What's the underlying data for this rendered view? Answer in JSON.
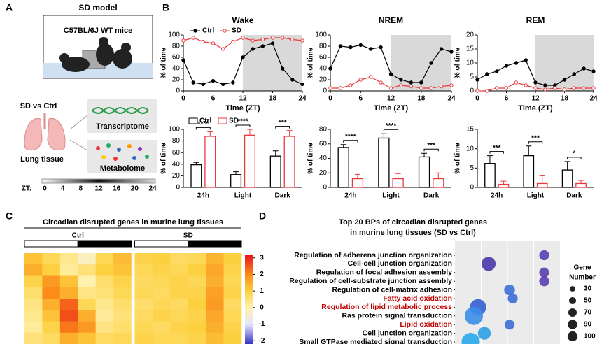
{
  "panel_labels": [
    "A",
    "B",
    "C",
    "D"
  ],
  "model": {
    "title": "SD model",
    "strain": "C57BL/6J WT mice",
    "compare": "SD vs Ctrl",
    "tissue": "Lung tissue",
    "omics": [
      "Transcriptome",
      "Metabolome"
    ],
    "zt_label": "ZT:",
    "zt_ticks": [
      0,
      4,
      8,
      12,
      16,
      20,
      24
    ]
  },
  "chart_data": [
    {
      "type": "line",
      "title": "Wake",
      "xlabel": "Time (ZT)",
      "ylabel": "% of time",
      "legend": true,
      "shade": [
        12,
        24
      ],
      "shade_color": "#d9d9d9",
      "x": [
        0,
        2,
        4,
        6,
        8,
        10,
        12,
        14,
        16,
        18,
        20,
        22,
        24
      ],
      "xlim": [
        0,
        24
      ],
      "xticks": [
        0,
        6,
        12,
        18,
        24
      ],
      "ylim": [
        0,
        100
      ],
      "yticks": [
        0,
        20,
        40,
        60,
        80,
        100
      ],
      "series": [
        {
          "name": "Ctrl",
          "color": "#000000",
          "filled": true,
          "values": [
            55,
            15,
            12,
            18,
            12,
            15,
            60,
            75,
            80,
            85,
            40,
            20,
            12
          ]
        },
        {
          "name": "SD",
          "color": "#e8383d",
          "filled": false,
          "values": [
            90,
            95,
            88,
            85,
            75,
            88,
            95,
            90,
            92,
            95,
            95,
            92,
            90
          ]
        }
      ]
    },
    {
      "type": "line",
      "title": "NREM",
      "xlabel": "Time (ZT)",
      "ylabel": "% of time",
      "shade": [
        12,
        24
      ],
      "shade_color": "#d9d9d9",
      "x": [
        0,
        2,
        4,
        6,
        8,
        10,
        12,
        14,
        16,
        18,
        20,
        22,
        24
      ],
      "xlim": [
        0,
        24
      ],
      "xticks": [
        0,
        6,
        12,
        18,
        24
      ],
      "ylim": [
        0,
        100
      ],
      "yticks": [
        0,
        20,
        40,
        60,
        80,
        100
      ],
      "series": [
        {
          "color": "#000000",
          "filled": true,
          "values": [
            40,
            80,
            78,
            82,
            75,
            78,
            30,
            20,
            15,
            15,
            50,
            75,
            70
          ]
        },
        {
          "color": "#e8383d",
          "filled": false,
          "values": [
            5,
            5,
            10,
            20,
            25,
            15,
            5,
            10,
            8,
            5,
            5,
            8,
            10
          ]
        }
      ]
    },
    {
      "type": "line",
      "title": "REM",
      "xlabel": "Time (ZT)",
      "ylabel": "% of time",
      "shade": [
        12,
        24
      ],
      "shade_color": "#d9d9d9",
      "x": [
        0,
        2,
        4,
        6,
        8,
        10,
        12,
        14,
        16,
        18,
        20,
        22,
        24
      ],
      "xlim": [
        0,
        24
      ],
      "xticks": [
        0,
        6,
        12,
        18,
        24
      ],
      "ylim": [
        0,
        20
      ],
      "yticks": [
        0,
        5,
        10,
        15,
        20
      ],
      "series": [
        {
          "color": "#000000",
          "filled": true,
          "values": [
            4,
            6,
            7,
            9,
            10,
            11,
            3,
            2,
            2,
            4,
            6,
            8,
            7
          ]
        },
        {
          "color": "#e8383d",
          "filled": false,
          "values": [
            0,
            0,
            1,
            1,
            3,
            2,
            1,
            0.5,
            1,
            0.5,
            1,
            1,
            1
          ]
        }
      ]
    },
    {
      "type": "bar",
      "ylabel": "% of time",
      "legend": true,
      "categories": [
        "24h",
        "Light",
        "Dark"
      ],
      "ylim": [
        0,
        100
      ],
      "yticks": [
        0,
        20,
        40,
        60,
        80,
        100
      ],
      "significance": [
        "****",
        "****",
        "***"
      ],
      "series": [
        {
          "name": "Ctrl",
          "color": "#000000",
          "values": [
            39,
            22,
            54
          ],
          "errors": [
            4,
            5,
            9
          ]
        },
        {
          "name": "SD",
          "color": "#e8383d",
          "values": [
            88,
            90,
            88
          ],
          "errors": [
            8,
            10,
            10
          ]
        }
      ]
    },
    {
      "type": "bar",
      "ylabel": "% of time",
      "categories": [
        "24h",
        "Light",
        "Dark"
      ],
      "ylim": [
        0,
        80
      ],
      "yticks": [
        0,
        20,
        40,
        60,
        80
      ],
      "significance": [
        "****",
        "****",
        "***"
      ],
      "series": [
        {
          "color": "#000000",
          "values": [
            55,
            68,
            42
          ],
          "errors": [
            4,
            6,
            5
          ]
        },
        {
          "color": "#e8383d",
          "values": [
            12,
            12,
            12
          ],
          "errors": [
            6,
            7,
            8
          ]
        }
      ]
    },
    {
      "type": "bar",
      "ylabel": "% of time",
      "categories": [
        "24h",
        "Light",
        "Dark"
      ],
      "ylim": [
        0,
        15
      ],
      "yticks": [
        0,
        5,
        10,
        15
      ],
      "significance": [
        "***",
        "***",
        "*"
      ],
      "series": [
        {
          "color": "#000000",
          "values": [
            6.2,
            8.2,
            4.5
          ],
          "errors": [
            2,
            2.5,
            2.2
          ]
        },
        {
          "color": "#e8383d",
          "values": [
            0.8,
            1.0,
            1.0
          ],
          "errors": [
            0.8,
            2,
            0.8
          ]
        }
      ]
    },
    {
      "type": "heatmap",
      "title": "Circadian disrupted genes in murine lung tissues",
      "groups": [
        "Ctrl",
        "SD"
      ],
      "clim": [
        -2.2,
        3.2
      ],
      "cticks": [
        3,
        2,
        1,
        0,
        -1,
        -2
      ],
      "colormap": [
        [
          -2.2,
          "#3030c0"
        ],
        [
          -1,
          "#e4e4ff"
        ],
        [
          0,
          "#fff2b0"
        ],
        [
          1,
          "#fdd040"
        ],
        [
          2,
          "#fb8c1a"
        ],
        [
          3.2,
          "#e8101a"
        ]
      ],
      "values": [
        [
          1.2,
          0.8,
          0.3,
          -0.2,
          0.8,
          1.3,
          0.9,
          1.0,
          0.7,
          0.8,
          1.4,
          1.0
        ],
        [
          1.5,
          1.0,
          0.2,
          0.5,
          1.0,
          1.2,
          0.8,
          0.9,
          0.8,
          1.0,
          1.6,
          0.9
        ],
        [
          0.9,
          1.8,
          1.2,
          0.0,
          0.6,
          0.9,
          0.7,
          0.8,
          0.9,
          0.8,
          1.5,
          0.8
        ],
        [
          0.6,
          2.0,
          1.5,
          0.4,
          0.5,
          0.8,
          0.8,
          0.7,
          0.9,
          0.9,
          1.7,
          0.9
        ],
        [
          0.4,
          1.5,
          2.4,
          0.8,
          0.3,
          0.6,
          0.6,
          0.8,
          0.7,
          1.0,
          1.8,
          0.7
        ],
        [
          0.3,
          1.2,
          2.6,
          1.5,
          0.2,
          0.5,
          0.7,
          0.9,
          0.8,
          0.9,
          1.6,
          0.8
        ],
        [
          0.2,
          0.9,
          2.2,
          1.8,
          0.4,
          0.6,
          0.8,
          0.7,
          0.9,
          1.0,
          1.5,
          0.9
        ],
        [
          0.5,
          0.7,
          1.5,
          1.2,
          0.7,
          0.8,
          0.9,
          0.8,
          0.8,
          0.9,
          1.3,
          1.0
        ]
      ]
    },
    {
      "type": "bubble",
      "title": [
        "Top 20 BPs of circadian disrupted genes",
        "in murine lung tissues (SD vs Ctrl)"
      ],
      "terms": [
        "Regulation of adherens junction organization",
        "Cell-cell junction organization",
        "Regulation of focal adhesion assembly",
        "Regulation of cell-substrate junction assembly",
        "Regulation of cell-matrix adhesion",
        "Fatty acid oxidation",
        "Regulation of lipid metabolic process",
        "Ras protein signal transduction",
        "Lipid oxidation",
        "Cell junction organization",
        "Small GTPase mediated signal transduction"
      ],
      "highlight": [
        5,
        6,
        8
      ],
      "highlight_color": "#c00000",
      "background": "#ebebeb",
      "xlim": [
        0,
        1
      ],
      "x": [
        0.85,
        0.32,
        0.85,
        0.85,
        0.52,
        0.55,
        0.22,
        0.18,
        0.52,
        0.28,
        0.15
      ],
      "sizes": [
        30,
        60,
        30,
        30,
        35,
        30,
        80,
        100,
        30,
        50,
        100
      ],
      "colors": [
        "#5a3fb0",
        "#4a38a8",
        "#5a3fb0",
        "#5a3fb0",
        "#3b6fd6",
        "#3b6fd6",
        "#3560d0",
        "#3b8ee8",
        "#3b6fd6",
        "#2ea0e8",
        "#2aa8ea"
      ],
      "size_title": [
        "Gene",
        "Number"
      ],
      "size_ticks": [
        30,
        50,
        70,
        90,
        100
      ]
    }
  ]
}
